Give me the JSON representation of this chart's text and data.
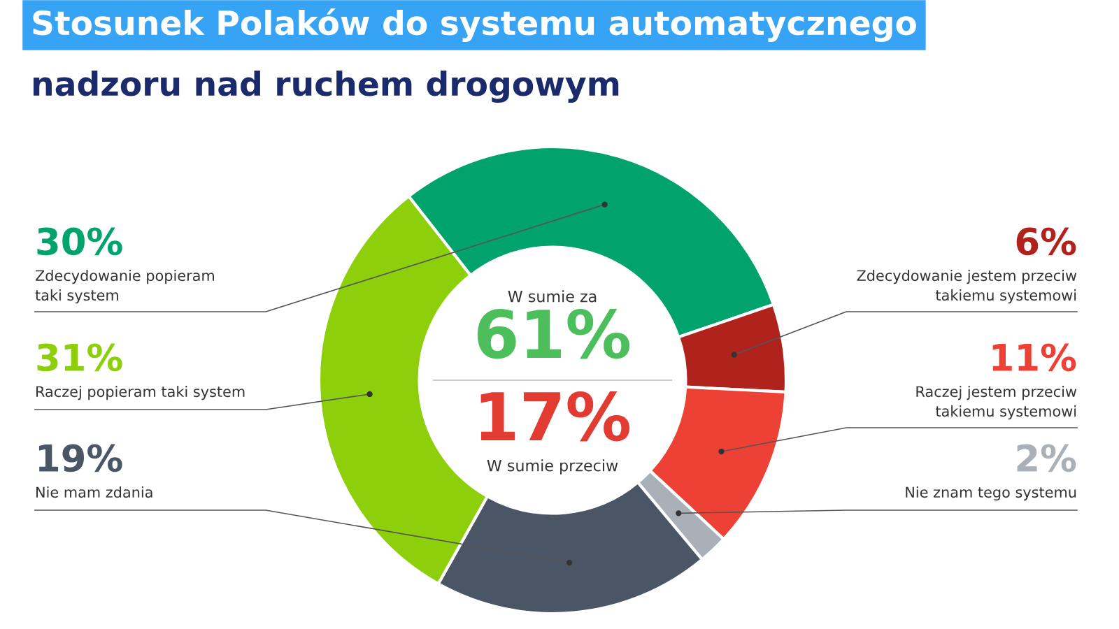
{
  "chart_data": {
    "type": "donut",
    "title": "Stosunek Polaków do systemu automatycznego\nnadzoru nad ruchem drogowym",
    "categories": [
      "Zdecydowanie popieram\ntaki system",
      "Zdecydowanie jestem przeciw\ntakiemu systemowi",
      "Raczej jestem przeciw\ntakiemu systemowi",
      "Nie znam tego systemu",
      "Nie mam zdania",
      "Raczej popieram taki system"
    ],
    "values": [
      30,
      6,
      11,
      2,
      19,
      31
    ],
    "value_labels": [
      "30%",
      "6%",
      "11%",
      "2%",
      "19%",
      "31%"
    ],
    "colors": [
      "#00a36c",
      "#b0231d",
      "#ee4136",
      "#a9b0b8",
      "#4a5566",
      "#8dcf0b"
    ],
    "annotations": [
      "W sumie za",
      "61%",
      "17%",
      "W sumie przeciw"
    ],
    "legend": false
  }
}
